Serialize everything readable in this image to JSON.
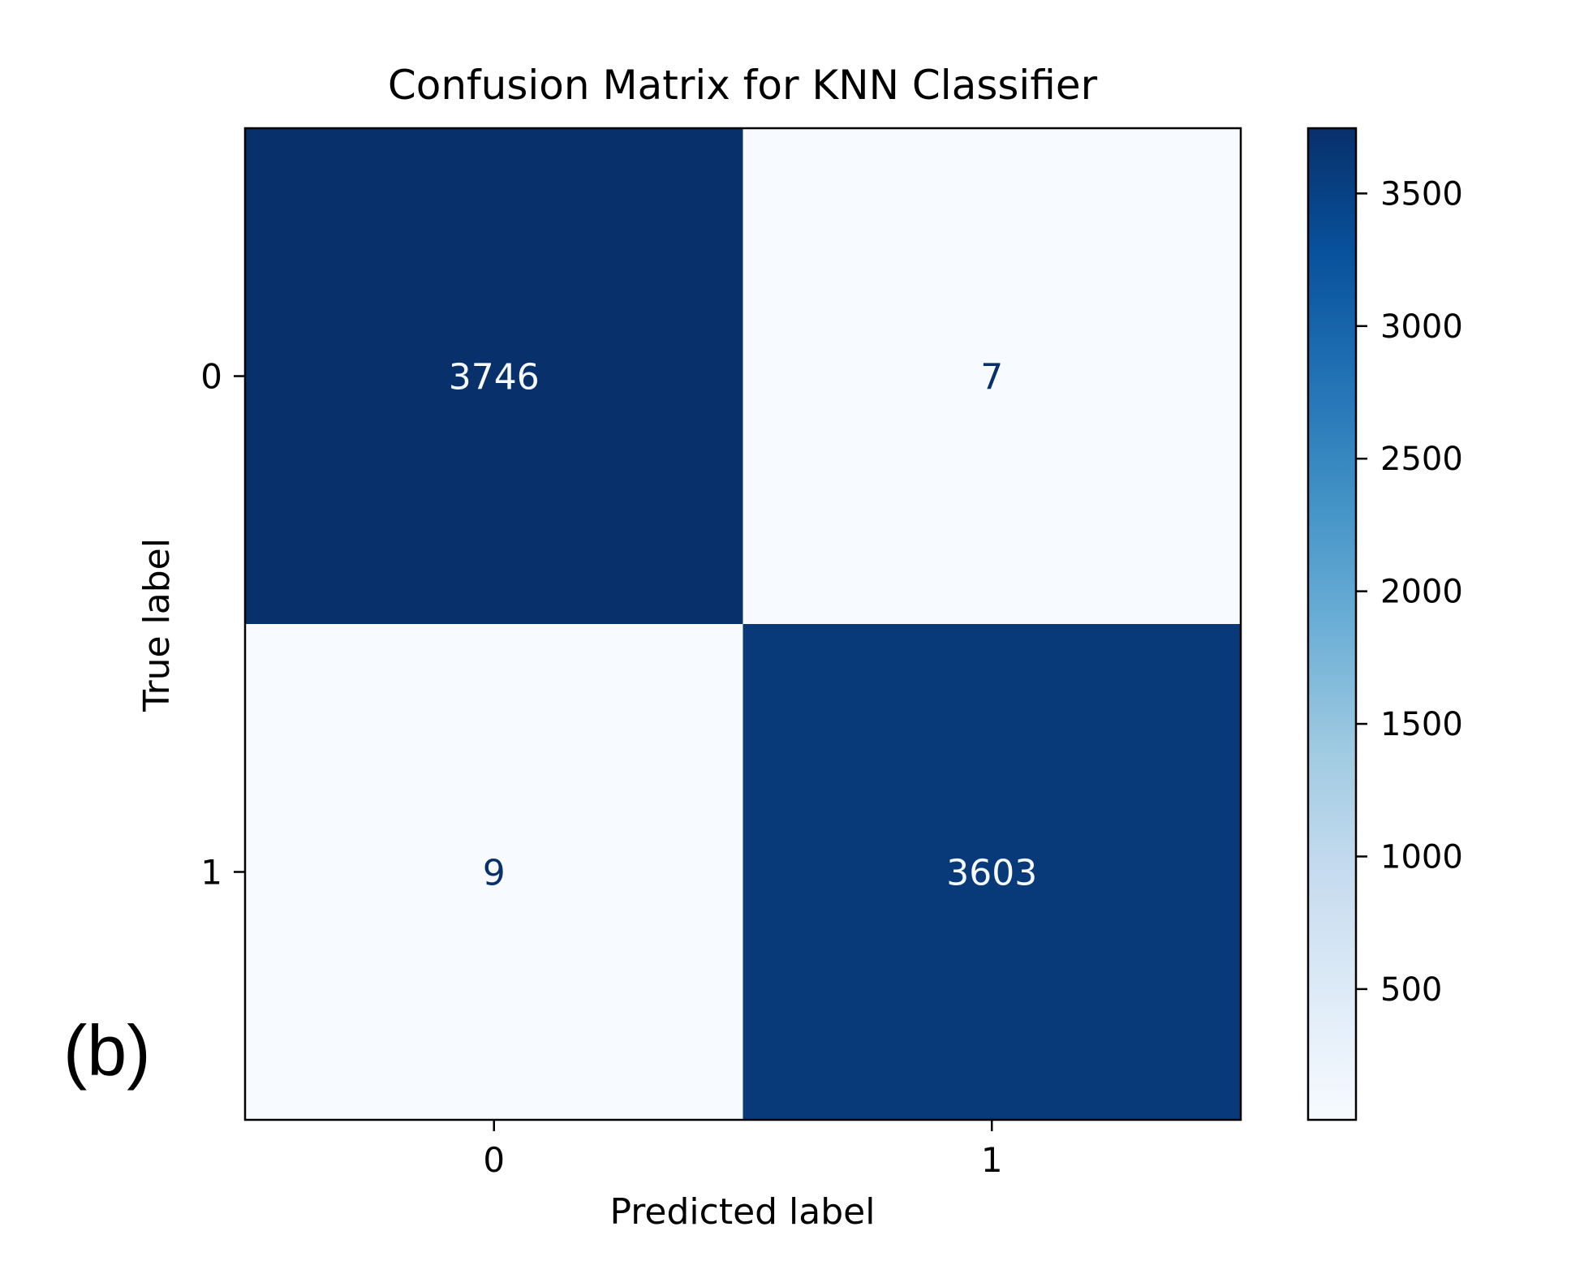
{
  "panel_label": "(b)",
  "chart_data": {
    "type": "heatmap",
    "title": "Confusion Matrix for KNN Classifier",
    "xlabel": "Predicted label",
    "ylabel": "True label",
    "x_categories": [
      "0",
      "1"
    ],
    "y_categories": [
      "0",
      "1"
    ],
    "values": [
      [
        3746,
        7
      ],
      [
        9,
        3603
      ]
    ],
    "colormap": "Blues",
    "colorbar": {
      "vmin": 7,
      "vmax": 3746,
      "ticks": [
        500,
        1000,
        1500,
        2000,
        2500,
        3000,
        3500
      ],
      "tick_labels": [
        "500",
        "1000",
        "1500",
        "2000",
        "2500",
        "3000",
        "3500"
      ]
    },
    "colors": {
      "high": "#08306b",
      "low": "#f7fbff",
      "cell_text_dark_bg": "#f7fbff",
      "cell_text_light_bg": "#08306b",
      "axis": "#000000"
    }
  }
}
